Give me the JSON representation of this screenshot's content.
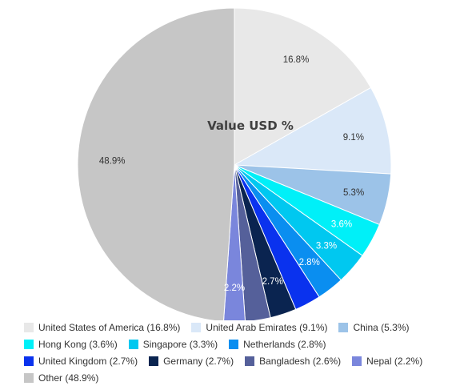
{
  "chart_data": {
    "type": "pie",
    "title": "Value USD %",
    "start_angle_deg": 90,
    "direction": "clockwise",
    "slices": [
      {
        "name": "United States of America",
        "value": 16.8,
        "label": "16.8%",
        "legend": "United States of America (16.8%)",
        "color": "#e8e8e8",
        "label_color": "dark"
      },
      {
        "name": "United Arab Emirates",
        "value": 9.1,
        "label": "9.1%",
        "legend": "United Arab Emirates (9.1%)",
        "color": "#dae8f8",
        "label_color": "dark"
      },
      {
        "name": "China",
        "value": 5.3,
        "label": "5.3%",
        "legend": "China (5.3%)",
        "color": "#9cc3e8",
        "label_color": "dark"
      },
      {
        "name": "Hong Kong",
        "value": 3.6,
        "label": "3.6%",
        "legend": "Hong Kong (3.6%)",
        "color": "#00f0f8",
        "label_color": "light"
      },
      {
        "name": "Singapore",
        "value": 3.3,
        "label": "3.3%",
        "legend": "Singapore (3.3%)",
        "color": "#00c8f0",
        "label_color": "light"
      },
      {
        "name": "Netherlands",
        "value": 2.8,
        "label": "2.8%",
        "legend": "Netherlands (2.8%)",
        "color": "#0a8ef0",
        "label_color": "light"
      },
      {
        "name": "United Kingdom",
        "value": 2.7,
        "label": "",
        "legend": "United Kingdom (2.7%)",
        "color": "#0a32ee",
        "label_color": "light"
      },
      {
        "name": "Germany",
        "value": 2.7,
        "label": "2.7%",
        "legend": "Germany (2.7%)",
        "color": "#0a2450",
        "label_color": "light"
      },
      {
        "name": "Bangladesh",
        "value": 2.6,
        "label": "",
        "legend": "Bangladesh (2.6%)",
        "color": "#55609a",
        "label_color": "light"
      },
      {
        "name": "Nepal",
        "value": 2.2,
        "label": "2.2%",
        "legend": "Nepal (2.2%)",
        "color": "#7a86dc",
        "label_color": "light"
      },
      {
        "name": "Other",
        "value": 48.9,
        "label": "48.9%",
        "legend": "Other (48.9%)",
        "color": "#c6c6c6",
        "label_color": "dark"
      }
    ],
    "legend_placement": "bottom",
    "legend_rows": [
      [
        0,
        1,
        2
      ],
      [
        3,
        4,
        5
      ],
      [
        6,
        7,
        8,
        9
      ],
      [
        10
      ]
    ]
  }
}
